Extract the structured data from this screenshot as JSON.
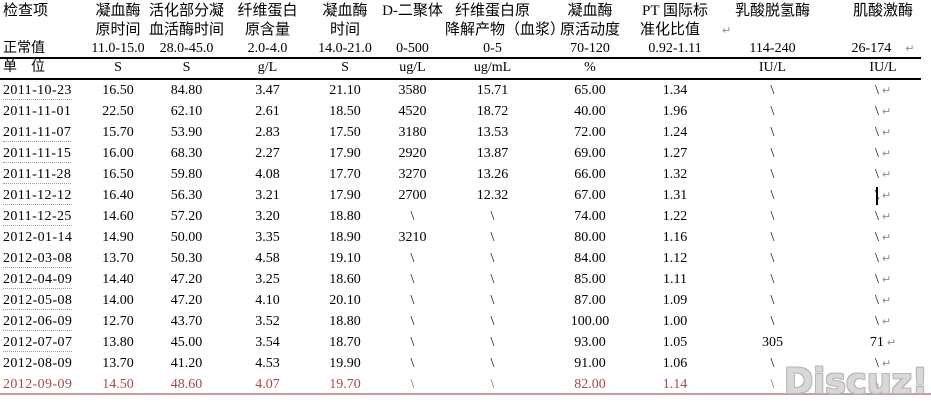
{
  "header": {
    "items_col_label": "检查项",
    "normal_label": "正常值",
    "unit_label": "单　位",
    "columns": [
      {
        "line1": "凝血酶",
        "line2": "原时间",
        "normal": "11.0-15.0",
        "unit": "S"
      },
      {
        "line1": "活化部分凝",
        "line2": "血活酶时间",
        "normal": "28.0-45.0",
        "unit": "S"
      },
      {
        "line1": "纤维蛋白",
        "line2": "原含量",
        "normal": "2.0-4.0",
        "unit": "g/L"
      },
      {
        "line1": "凝血酶",
        "line2": "时间",
        "normal": "14.0-21.0",
        "unit": "S"
      },
      {
        "line1": "D-二聚体",
        "line2": "",
        "normal": "0-500",
        "unit": "ug/L"
      },
      {
        "line1": "纤维蛋白原",
        "line2": "降解产物（血浆）",
        "normal": "0-5",
        "unit": "ug/mL"
      },
      {
        "line1": "凝血酶",
        "line2": "原活动度",
        "normal": "70-120",
        "unit": "%"
      },
      {
        "line1": "PT 国际标",
        "line2": "准化比值",
        "normal": "0.92-1.11",
        "unit": "",
        "pilcrow_after_line2": true
      },
      {
        "line1": "乳酸脱氢酶",
        "line2": "",
        "normal": "114-240",
        "unit": "IU/L"
      },
      {
        "line1": "肌酸激酶",
        "line2": "",
        "normal": "26-174",
        "unit": "IU/L",
        "pilcrow_after_normal": true
      }
    ]
  },
  "rows": [
    {
      "date": "2011-10-23",
      "dotted": true,
      "red": false,
      "values": [
        "16.50",
        "84.80",
        "3.47",
        "21.10",
        "3580",
        "15.71",
        "65.00",
        "1.34",
        "\\",
        "\\"
      ]
    },
    {
      "date": "2011-11-01",
      "dotted": false,
      "red": false,
      "values": [
        "22.50",
        "62.10",
        "2.61",
        "18.50",
        "4520",
        "18.72",
        "40.00",
        "1.96",
        "\\",
        "\\"
      ]
    },
    {
      "date": "2011-11-07",
      "dotted": true,
      "red": false,
      "values": [
        "15.70",
        "53.90",
        "2.83",
        "17.50",
        "3180",
        "13.53",
        "72.00",
        "1.24",
        "\\",
        "\\"
      ]
    },
    {
      "date": "2011-11-15",
      "dotted": true,
      "red": false,
      "values": [
        "16.00",
        "68.30",
        "2.27",
        "17.90",
        "2920",
        "13.87",
        "69.00",
        "1.27",
        "\\",
        "\\"
      ]
    },
    {
      "date": "2011-11-28",
      "dotted": true,
      "red": false,
      "values": [
        "16.50",
        "59.80",
        "4.08",
        "17.70",
        "3270",
        "13.26",
        "66.00",
        "1.32",
        "\\",
        "\\"
      ]
    },
    {
      "date": "2011-12-12",
      "dotted": true,
      "red": false,
      "caret": true,
      "values": [
        "16.40",
        "56.30",
        "3.21",
        "17.90",
        "2700",
        "12.32",
        "67.00",
        "1.31",
        "\\",
        "\\"
      ]
    },
    {
      "date": "2011-12-25",
      "dotted": true,
      "red": false,
      "values": [
        "14.60",
        "57.20",
        "3.20",
        "18.80",
        "\\",
        "\\",
        "74.00",
        "1.22",
        "\\",
        "\\"
      ]
    },
    {
      "date": "2012-01-14",
      "dotted": false,
      "red": false,
      "values": [
        "14.90",
        "50.00",
        "3.35",
        "18.90",
        "3210",
        "\\",
        "80.00",
        "1.16",
        "\\",
        "\\"
      ]
    },
    {
      "date": "2012-03-08",
      "dotted": true,
      "red": false,
      "values": [
        "13.70",
        "50.30",
        "4.58",
        "19.10",
        "\\",
        "\\",
        "84.00",
        "1.12",
        "\\",
        "\\"
      ]
    },
    {
      "date": "2012-04-09",
      "dotted": true,
      "red": false,
      "values": [
        "14.40",
        "47.20",
        "3.25",
        "18.60",
        "\\",
        "\\",
        "85.00",
        "1.11",
        "\\",
        "\\"
      ]
    },
    {
      "date": "2012-05-08",
      "dotted": true,
      "red": false,
      "values": [
        "14.00",
        "47.20",
        "4.10",
        "20.10",
        "\\",
        "\\",
        "87.00",
        "1.09",
        "\\",
        "\\"
      ]
    },
    {
      "date": "2012-06-09",
      "dotted": true,
      "red": false,
      "values": [
        "12.70",
        "43.70",
        "3.52",
        "18.80",
        "\\",
        "\\",
        "100.00",
        "1.00",
        "\\",
        "\\"
      ]
    },
    {
      "date": "2012-07-07",
      "dotted": true,
      "red": false,
      "values": [
        "13.80",
        "45.00",
        "3.54",
        "18.70",
        "\\",
        "\\",
        "93.00",
        "1.05",
        "305",
        "71"
      ]
    },
    {
      "date": "2012-08-09",
      "dotted": false,
      "red": false,
      "values": [
        "13.70",
        "41.20",
        "4.53",
        "19.90",
        "\\",
        "\\",
        "91.00",
        "1.06",
        "\\",
        "\\"
      ]
    },
    {
      "date": "2012-09-09",
      "dotted": true,
      "red": true,
      "values": [
        "14.50",
        "48.60",
        "4.07",
        "19.70",
        "\\",
        "\\",
        "82.00",
        "1.14",
        "\\",
        "\\"
      ]
    }
  ],
  "marks": {
    "pilcrow": "↵"
  },
  "watermark": {
    "text": "Discuz!"
  },
  "colors": {
    "text": "#000000",
    "highlight_red": "#a34a4a",
    "pilcrow_gray": "#8d8d8d",
    "rule_black": "#000000",
    "rule_bottom_pink": "#c79c9c",
    "watermark_gray": "#d8d8d8"
  }
}
